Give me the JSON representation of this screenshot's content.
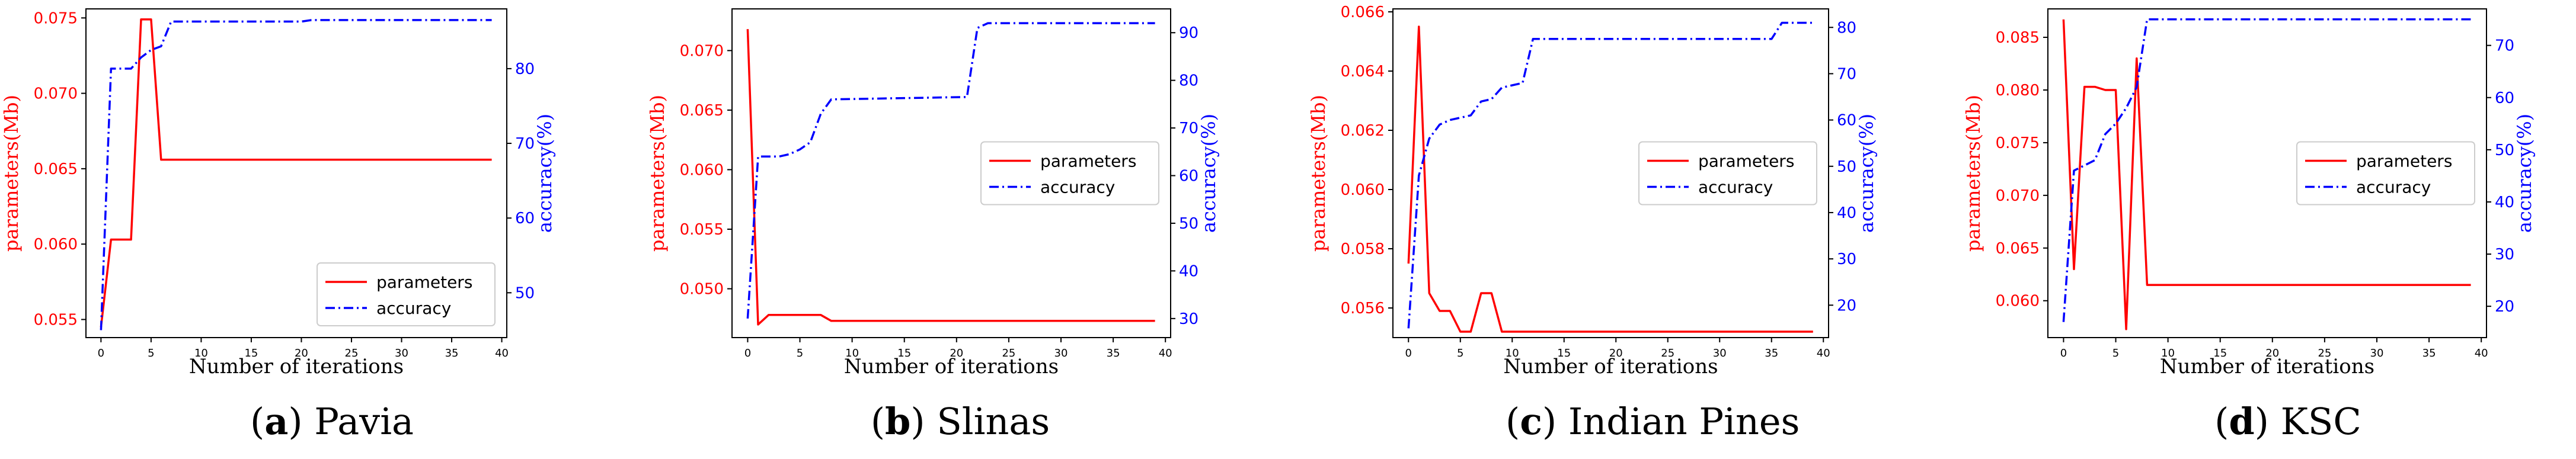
{
  "figure": {
    "captions": [
      {
        "letter": "a",
        "text": "Pavia"
      },
      {
        "letter": "b",
        "text": "Slinas"
      },
      {
        "letter": "c",
        "text": "Indian Pines"
      },
      {
        "letter": "d",
        "text": "KSC"
      }
    ],
    "colors": {
      "parameters": "#ff0000",
      "accuracy": "#0000ff",
      "axis": "#000000"
    }
  },
  "chart_data": [
    {
      "type": "line",
      "title": "Pavia",
      "xlabel": "Number of iterations",
      "ylabel_left": "parameters(Mb)",
      "ylabel_right": "accuracy(%)",
      "xlim": [
        -1.5,
        40.5
      ],
      "ylim_left": [
        0.0538,
        0.0756
      ],
      "ylim_right": [
        44,
        88
      ],
      "xticks": [
        0,
        5,
        10,
        15,
        20,
        25,
        30,
        35,
        40
      ],
      "yticks_left": [
        0.055,
        0.06,
        0.065,
        0.07,
        0.075
      ],
      "ytick_labels_left": [
        "0.055",
        "0.060",
        "0.065",
        "0.070",
        "0.075"
      ],
      "yticks_right": [
        50,
        60,
        70,
        80
      ],
      "legend": {
        "position": "lower right",
        "entries": [
          "parameters",
          "accuracy"
        ]
      },
      "series": [
        {
          "name": "parameters",
          "axis": "left",
          "style": "solid",
          "color": "#ff0000",
          "x": [
            0,
            1,
            2,
            3,
            4,
            5,
            6,
            39
          ],
          "y": [
            0.0545,
            0.0603,
            0.0603,
            0.0603,
            0.0749,
            0.0749,
            0.0656,
            0.0656
          ]
        },
        {
          "name": "accuracy",
          "axis": "right",
          "style": "dashdot",
          "color": "#0000ff",
          "x": [
            0,
            1,
            2,
            3,
            4,
            5,
            6,
            7,
            20,
            21,
            39
          ],
          "y": [
            45,
            80,
            80,
            80,
            81.5,
            82.5,
            83,
            86.3,
            86.3,
            86.5,
            86.5
          ]
        }
      ]
    },
    {
      "type": "line",
      "title": "Slinas",
      "xlabel": "Number of iterations",
      "ylabel_left": "parameters(Mb)",
      "ylabel_right": "accuracy(%)",
      "xlim": [
        -1.5,
        40.5
      ],
      "ylim_left": [
        0.0459,
        0.0735
      ],
      "ylim_right": [
        26,
        95
      ],
      "xticks": [
        0,
        5,
        10,
        15,
        20,
        25,
        30,
        35,
        40
      ],
      "yticks_left": [
        0.05,
        0.055,
        0.06,
        0.065,
        0.07
      ],
      "ytick_labels_left": [
        "0.050",
        "0.055",
        "0.060",
        "0.065",
        "0.070"
      ],
      "yticks_right": [
        30,
        40,
        50,
        60,
        70,
        80,
        90
      ],
      "legend": {
        "position": "center right",
        "entries": [
          "parameters",
          "accuracy"
        ]
      },
      "series": [
        {
          "name": "parameters",
          "axis": "left",
          "style": "solid",
          "color": "#ff0000",
          "x": [
            0,
            1,
            2,
            3,
            4,
            5,
            6,
            7,
            8,
            39
          ],
          "y": [
            0.0718,
            0.047,
            0.0478,
            0.0478,
            0.0478,
            0.0478,
            0.0478,
            0.0478,
            0.0473,
            0.0473
          ]
        },
        {
          "name": "accuracy",
          "axis": "right",
          "style": "dashdot",
          "color": "#0000ff",
          "x": [
            0,
            1,
            2,
            3,
            4,
            5,
            6,
            7,
            8,
            21,
            22,
            23,
            39
          ],
          "y": [
            30,
            64,
            64,
            64,
            64.5,
            65.5,
            67,
            73,
            76,
            76.5,
            91,
            92,
            92
          ]
        }
      ]
    },
    {
      "type": "line",
      "title": "Indian Pines",
      "xlabel": "Number of iterations",
      "ylabel_left": "parameters(Mb)",
      "ylabel_right": "accuracy(%)",
      "xlim": [
        -1.5,
        40.5
      ],
      "ylim_left": [
        0.055,
        0.0661
      ],
      "ylim_right": [
        13,
        84
      ],
      "xticks": [
        0,
        5,
        10,
        15,
        20,
        25,
        30,
        35,
        40
      ],
      "yticks_left": [
        0.056,
        0.058,
        0.06,
        0.062,
        0.064,
        0.066
      ],
      "ytick_labels_left": [
        "0.056",
        "0.058",
        "0.060",
        "0.062",
        "0.064",
        "0.066"
      ],
      "yticks_right": [
        20,
        30,
        40,
        50,
        60,
        70,
        80
      ],
      "legend": {
        "position": "center right",
        "entries": [
          "parameters",
          "accuracy"
        ]
      },
      "series": [
        {
          "name": "parameters",
          "axis": "left",
          "style": "solid",
          "color": "#ff0000",
          "x": [
            0,
            1,
            2,
            3,
            4,
            5,
            6,
            7,
            8,
            9,
            39
          ],
          "y": [
            0.0575,
            0.0655,
            0.0565,
            0.0559,
            0.0559,
            0.0552,
            0.0552,
            0.0565,
            0.0565,
            0.0552,
            0.0552
          ]
        },
        {
          "name": "accuracy",
          "axis": "right",
          "style": "dashdot",
          "color": "#0000ff",
          "x": [
            0,
            1,
            2,
            3,
            4,
            5,
            6,
            7,
            8,
            9,
            10,
            11,
            12,
            35,
            36,
            39
          ],
          "y": [
            15,
            48,
            56,
            59,
            60,
            60.5,
            61,
            64,
            64.5,
            67,
            67.5,
            68,
            77.5,
            77.5,
            81,
            81
          ]
        }
      ]
    },
    {
      "type": "line",
      "title": "KSC",
      "xlabel": "Number of iterations",
      "ylabel_left": "parameters(Mb)",
      "ylabel_right": "accuracy(%)",
      "xlim": [
        -1.5,
        40.5
      ],
      "ylim_left": [
        0.0565,
        0.0877
      ],
      "ylim_right": [
        14,
        77
      ],
      "xticks": [
        0,
        5,
        10,
        15,
        20,
        25,
        30,
        35,
        40
      ],
      "yticks_left": [
        0.06,
        0.065,
        0.07,
        0.075,
        0.08,
        0.085
      ],
      "ytick_labels_left": [
        "0.060",
        "0.065",
        "0.070",
        "0.075",
        "0.080",
        "0.085"
      ],
      "yticks_right": [
        20,
        30,
        40,
        50,
        60,
        70
      ],
      "legend": {
        "position": "center right",
        "entries": [
          "parameters",
          "accuracy"
        ]
      },
      "series": [
        {
          "name": "parameters",
          "axis": "left",
          "style": "solid",
          "color": "#ff0000",
          "x": [
            0,
            1,
            2,
            3,
            4,
            5,
            6,
            7,
            8,
            39
          ],
          "y": [
            0.0867,
            0.063,
            0.0803,
            0.0803,
            0.08,
            0.08,
            0.0573,
            0.083,
            0.0615,
            0.0615
          ]
        },
        {
          "name": "accuracy",
          "axis": "right",
          "style": "dashdot",
          "color": "#0000ff",
          "x": [
            0,
            1,
            2,
            3,
            4,
            5,
            6,
            7,
            8,
            39
          ],
          "y": [
            17,
            46,
            47,
            48,
            53,
            55,
            58,
            62,
            75,
            75
          ]
        }
      ]
    }
  ]
}
